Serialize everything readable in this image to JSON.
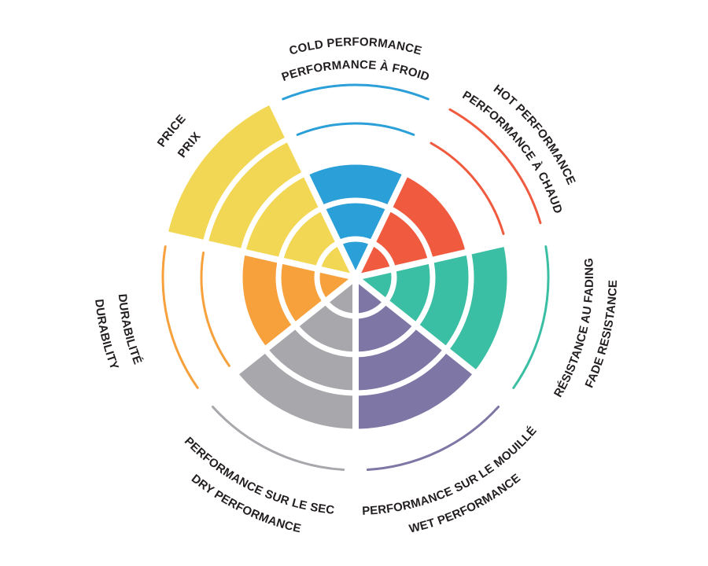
{
  "page": {
    "background_color": "#ffffff",
    "text_color": "#231f20",
    "description": "Bilingual (English/French) tire rating wheel infographic with 7 colored sectors, each scored out of 5 concentric levels"
  },
  "chart_data": {
    "type": "radial-rating",
    "title": "",
    "levels": 5,
    "max_value": 5,
    "grid_color": "#ffffff",
    "start_angle_deg": 90,
    "direction": "clockwise",
    "legend_position": "curved labels around wheel, English line outer, French line inner",
    "categories": [
      {
        "id": "cold",
        "label_en": "COLD PERFORMANCE",
        "label_fr": "PERFORMANCE À FROID",
        "value": 3,
        "color": "#2B9FD8"
      },
      {
        "id": "hot",
        "label_en": "HOT PERFORMANCE",
        "label_fr": "PERFORMANCE À CHAUD",
        "value": 3,
        "color": "#F05B3F"
      },
      {
        "id": "fade",
        "label_en": "FADE RESISTANCE",
        "label_fr": "RÉSISTANCE AU FADING",
        "value": 4,
        "color": "#3ABFA4"
      },
      {
        "id": "wet",
        "label_en": "WET PERFORMANCE",
        "label_fr": "PERFORMANCE SUR LE MOUILLÉ",
        "value": 4,
        "color": "#7E76A5"
      },
      {
        "id": "dry",
        "label_en": "DRY PERFORMANCE",
        "label_fr": "PERFORMANCE SUR LE SEC",
        "value": 4,
        "color": "#A8A8AC"
      },
      {
        "id": "durability",
        "label_en": "DURABILITY",
        "label_fr": "DURABILITÉ",
        "value": 3,
        "color": "#F7A13D"
      },
      {
        "id": "price",
        "label_en": "PRICE",
        "label_fr": "PRIX",
        "value": 5,
        "color": "#F2D754"
      }
    ],
    "notes": "Unachieved levels are marked with a thin arc of the sector color at that level's outer radius"
  }
}
